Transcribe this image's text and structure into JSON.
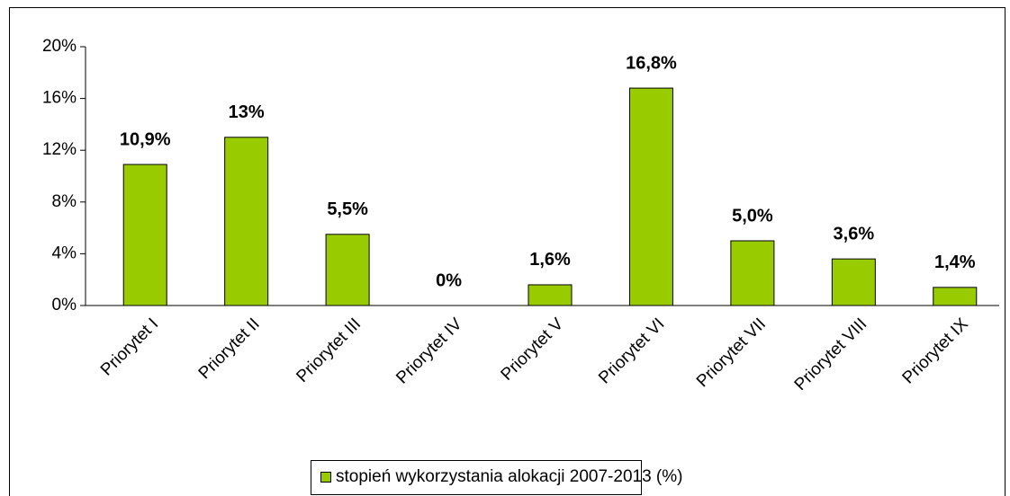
{
  "chart_data": {
    "type": "bar",
    "categories": [
      "Priorytet I",
      "Priorytet II",
      "Priorytet III",
      "Priorytet IV",
      "Priorytet V",
      "Priorytet VI",
      "Priorytet VII",
      "Priorytet VIII",
      "Priorytet IX"
    ],
    "series": [
      {
        "name": "stopień wykorzystania alokacji 2007-2013 (%)",
        "color": "#99cc00",
        "values": [
          10.9,
          13,
          5.5,
          0,
          1.6,
          16.8,
          5.0,
          3.6,
          1.4
        ],
        "value_labels": [
          "10,9%",
          "13%",
          "5,5%",
          "0%",
          "1,6%",
          "16,8%",
          "5,0%",
          "3,6%",
          "1,4%"
        ]
      }
    ],
    "ylim": [
      0,
      20
    ],
    "yticks": [
      {
        "value": 0,
        "label": "0%"
      },
      {
        "value": 4,
        "label": "4%"
      },
      {
        "value": 8,
        "label": "8%"
      },
      {
        "value": 12,
        "label": "12%"
      },
      {
        "value": 16,
        "label": "16%"
      },
      {
        "value": 20,
        "label": "20%"
      }
    ],
    "grid": false,
    "legend": "bottom"
  }
}
